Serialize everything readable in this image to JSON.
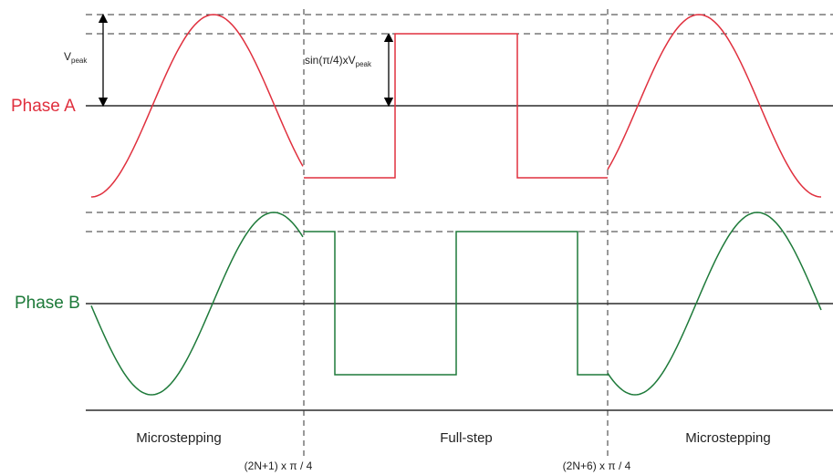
{
  "labels": {
    "phase_a": "Phase A",
    "phase_b": "Phase B",
    "v_peak_main": "V",
    "v_peak_sub": "peak",
    "sin_main": "sin(π/4)xV",
    "sin_sub": "peak"
  },
  "regions": [
    "Microstepping",
    "Full-step",
    "Microstepping"
  ],
  "boundaries": [
    "(2N+1) x π / 4",
    "(2N+6) x π / 4"
  ],
  "colors": {
    "phase_a": "#e0303e",
    "phase_b": "#1e7a3a",
    "axis": "#000000",
    "guide": "#333333"
  }
}
